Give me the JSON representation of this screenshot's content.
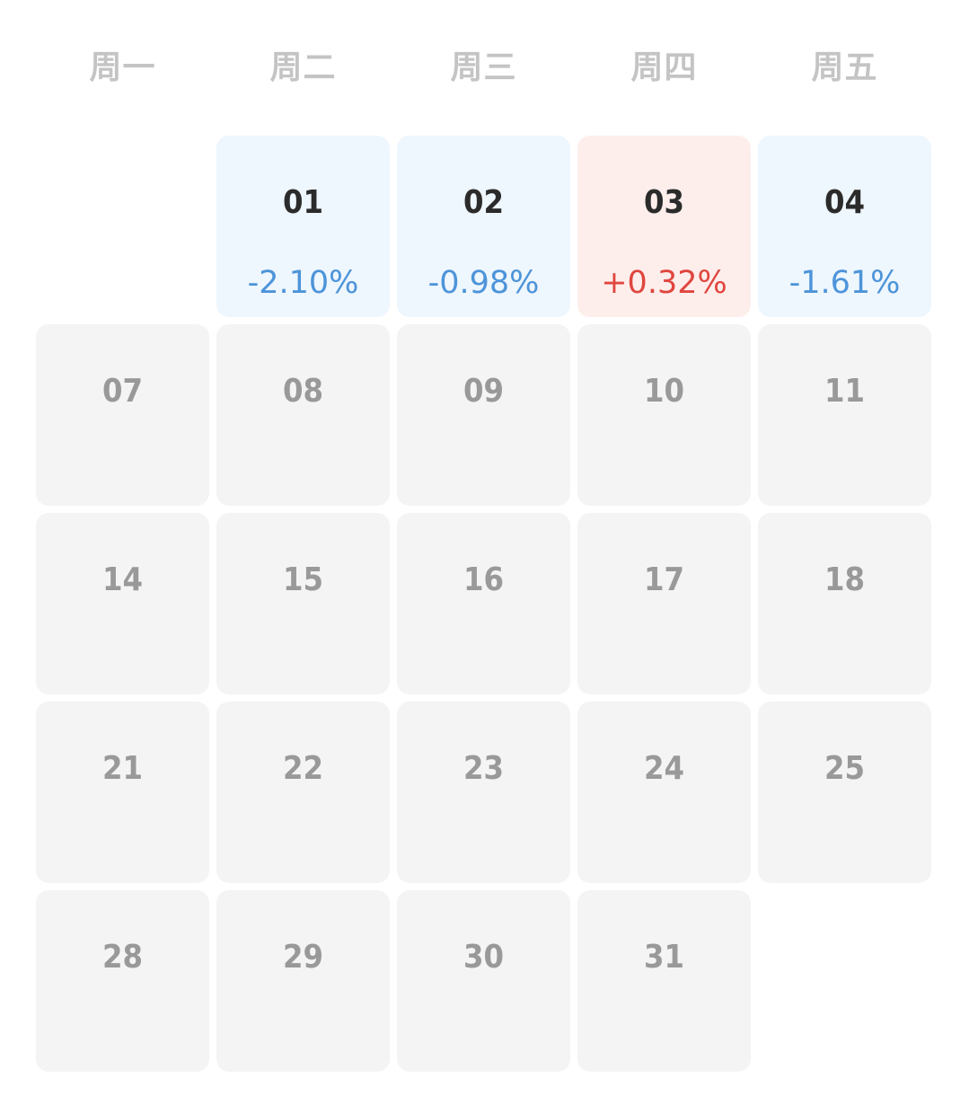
{
  "weekdays": [
    "周一",
    "周二",
    "周三",
    "周四",
    "周五"
  ],
  "colors": {
    "down_bg": "#eef6fe",
    "down_text": "#4d94d9",
    "up_bg": "#fdeeec",
    "up_text": "#e0463f",
    "inactive_bg": "#f4f4f4",
    "inactive_text": "#999999",
    "active_text": "#2b2b2b",
    "weekday_text": "#c4c4c4"
  },
  "days": [
    {
      "day": "01",
      "change": "-2.10%",
      "trend": "down"
    },
    {
      "day": "02",
      "change": "-0.98%",
      "trend": "down"
    },
    {
      "day": "03",
      "change": "+0.32%",
      "trend": "up"
    },
    {
      "day": "04",
      "change": "-1.61%",
      "trend": "down"
    },
    {
      "day": "07"
    },
    {
      "day": "08"
    },
    {
      "day": "09"
    },
    {
      "day": "10"
    },
    {
      "day": "11"
    },
    {
      "day": "14"
    },
    {
      "day": "15"
    },
    {
      "day": "16"
    },
    {
      "day": "17"
    },
    {
      "day": "18"
    },
    {
      "day": "21"
    },
    {
      "day": "22"
    },
    {
      "day": "23"
    },
    {
      "day": "24"
    },
    {
      "day": "25"
    },
    {
      "day": "28"
    },
    {
      "day": "29"
    },
    {
      "day": "30"
    },
    {
      "day": "31"
    }
  ]
}
